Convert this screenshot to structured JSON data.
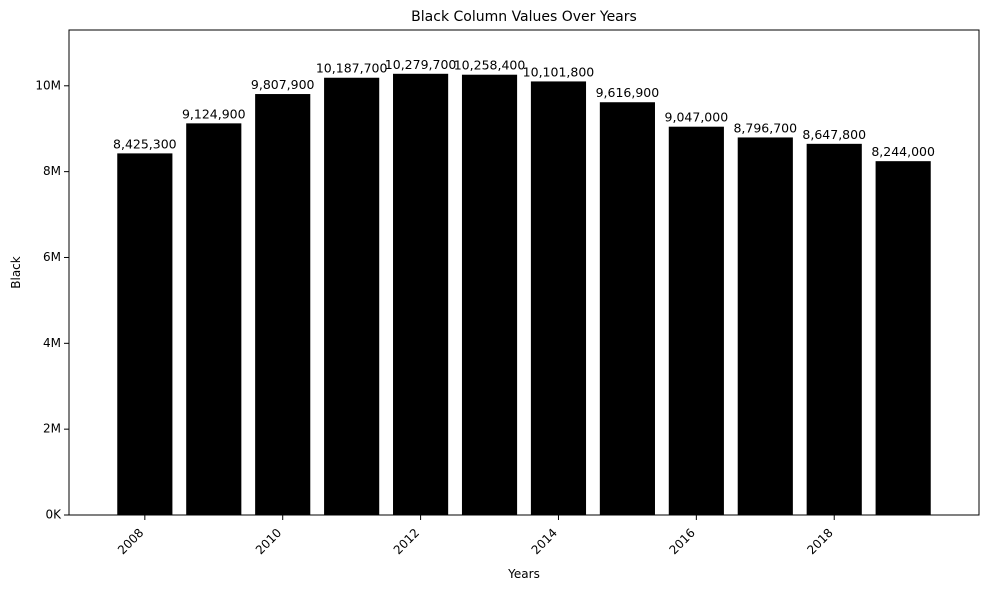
{
  "chart_data": {
    "type": "bar",
    "title": "Black Column Values Over Years",
    "xlabel": "Years",
    "ylabel": "Black",
    "x": [
      2008,
      2009,
      2010,
      2011,
      2012,
      2013,
      2014,
      2015,
      2016,
      2017,
      2018,
      2019
    ],
    "values": [
      8425300,
      9124900,
      9807900,
      10187700,
      10279700,
      10258400,
      10101800,
      9616900,
      9047000,
      8796700,
      8647800,
      8244000
    ],
    "value_labels": [
      "8,425,300",
      "9,124,900",
      "9,807,900",
      "10,187,700",
      "10,279,700",
      "10,258,400",
      "10,101,800",
      "9,616,900",
      "9,047,000",
      "8,796,700",
      "8,647,800",
      "8,244,000"
    ],
    "ylim": [
      0,
      11300000
    ],
    "xlim": [
      2006.9,
      2020.1
    ],
    "yticks": [
      0,
      2000000,
      4000000,
      6000000,
      8000000,
      10000000
    ],
    "ytick_labels": [
      "0K",
      "2M",
      "4M",
      "6M",
      "8M",
      "10M"
    ],
    "xticks": [
      2008,
      2010,
      2012,
      2014,
      2016,
      2018
    ],
    "xtick_labels": [
      "2008",
      "2010",
      "2012",
      "2014",
      "2016",
      "2018"
    ],
    "bar_color": "#000000",
    "grid": false,
    "legend": "none"
  }
}
